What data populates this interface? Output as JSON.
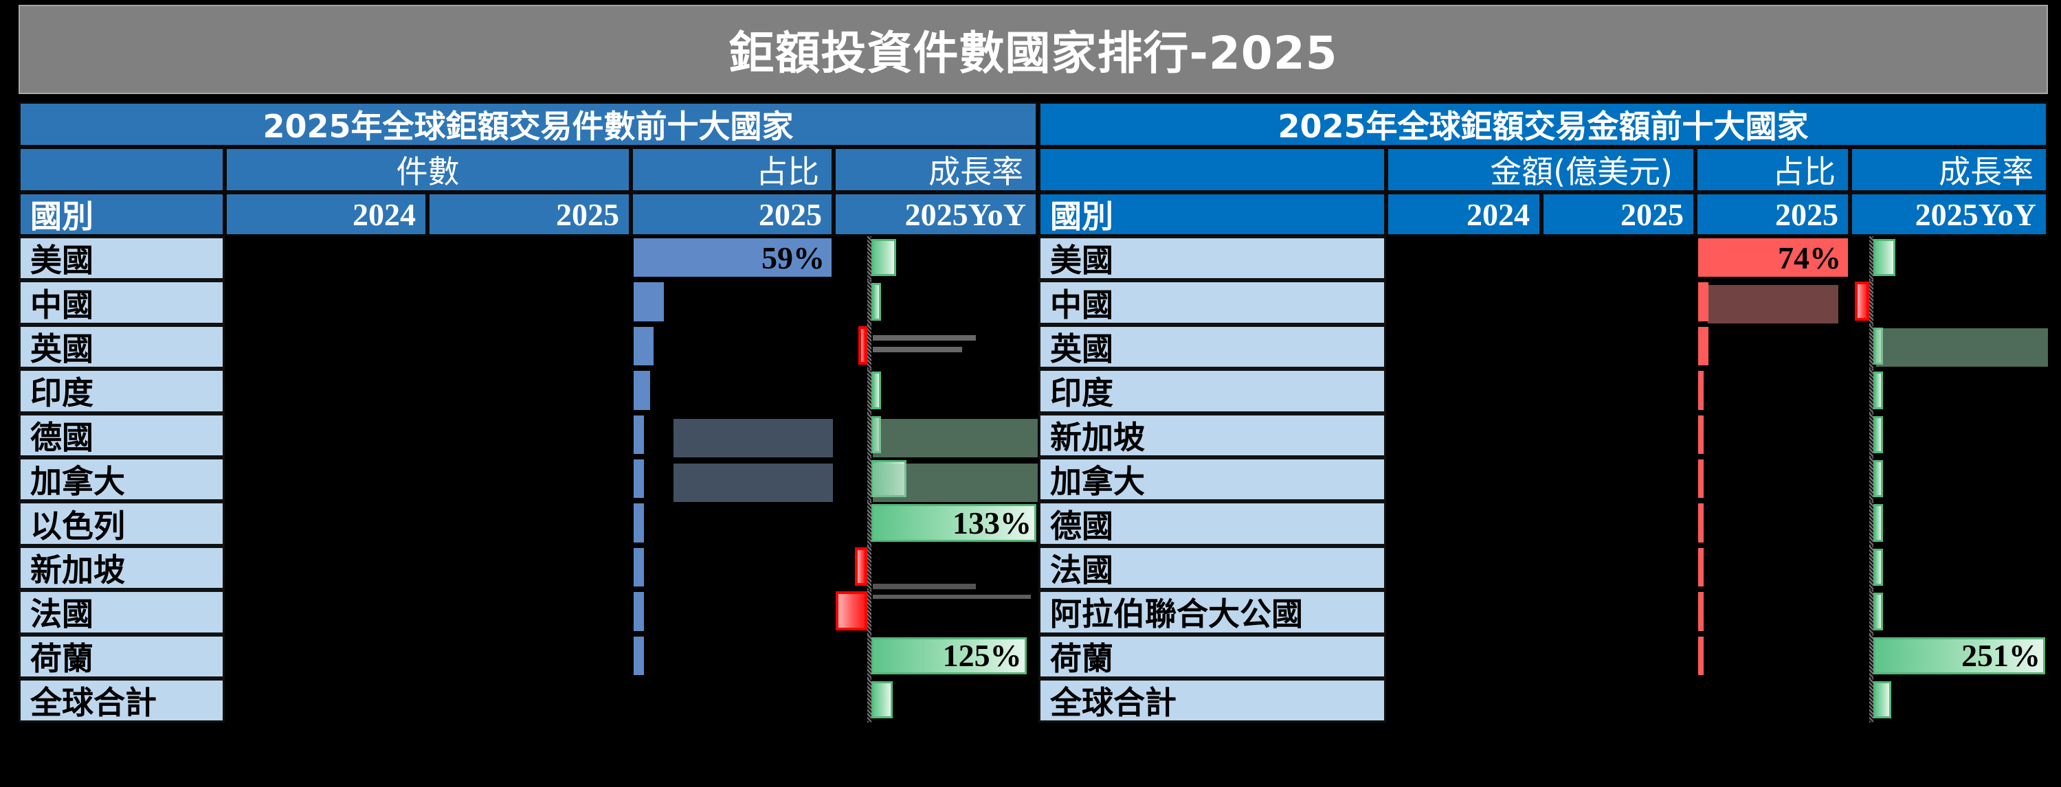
{
  "title": "鉅額投資件數國家排行-2025",
  "chart_data": [
    {
      "type": "table",
      "title": "2025年全球鉅額交易件數前十大國家",
      "column_groups": [
        "",
        "件數",
        "占比",
        "成長率"
      ],
      "columns": [
        "國別",
        "2024",
        "2025",
        "2025",
        "2025YoY"
      ],
      "rows": [
        {
          "country": "美國",
          "count_2024": "",
          "count_2025": "",
          "share_2025": 59,
          "share_label": "59%",
          "yoy": 20,
          "yoy_label": ""
        },
        {
          "country": "中國",
          "count_2024": "",
          "count_2025": "",
          "share_2025": 9,
          "share_label": "",
          "yoy": 6,
          "yoy_label": ""
        },
        {
          "country": "英國",
          "count_2024": "",
          "count_2025": "",
          "share_2025": 6,
          "share_label": "",
          "yoy": -6,
          "yoy_label": ""
        },
        {
          "country": "印度",
          "count_2024": "",
          "count_2025": "",
          "share_2025": 5,
          "share_label": "",
          "yoy": 6,
          "yoy_label": ""
        },
        {
          "country": "德國",
          "count_2024": "",
          "count_2025": "",
          "share_2025": 3,
          "share_label": "",
          "yoy": 3,
          "yoy_label": ""
        },
        {
          "country": "加拿大",
          "count_2024": "",
          "count_2025": "",
          "share_2025": 3,
          "share_label": "",
          "yoy": 28,
          "yoy_label": ""
        },
        {
          "country": "以色列",
          "count_2024": "",
          "count_2025": "",
          "share_2025": 3,
          "share_label": "",
          "yoy": 133,
          "yoy_label": "133%"
        },
        {
          "country": "新加坡",
          "count_2024": "",
          "count_2025": "",
          "share_2025": 3,
          "share_label": "",
          "yoy": -8,
          "yoy_label": ""
        },
        {
          "country": "法國",
          "count_2024": "",
          "count_2025": "",
          "share_2025": 3,
          "share_label": "",
          "yoy": -21,
          "yoy_label": ""
        },
        {
          "country": "荷蘭",
          "count_2024": "",
          "count_2025": "",
          "share_2025": 3,
          "share_label": "",
          "yoy": 125,
          "yoy_label": "125%"
        },
        {
          "country": "全球合計",
          "count_2024": "",
          "count_2025": "",
          "share_2025": null,
          "share_label": "",
          "yoy": 17,
          "yoy_label": ""
        }
      ]
    },
    {
      "type": "table",
      "title": "2025年全球鉅額交易金額前十大國家",
      "column_groups": [
        "",
        "金額(億美元)",
        "占比",
        "成長率"
      ],
      "columns": [
        "國別",
        "2024",
        "2025",
        "2025",
        "2025YoY"
      ],
      "rows": [
        {
          "country": "美國",
          "amount_2024": "",
          "amount_2025": "",
          "share_2025": 74,
          "share_label": "74%",
          "yoy": 32,
          "yoy_label": ""
        },
        {
          "country": "中國",
          "amount_2024": "",
          "amount_2025": "",
          "share_2025": 5,
          "share_label": "",
          "yoy": -7,
          "yoy_label": ""
        },
        {
          "country": "英國",
          "amount_2024": "",
          "amount_2025": "",
          "share_2025": 5,
          "share_label": "",
          "yoy": 4,
          "yoy_label": ""
        },
        {
          "country": "印度",
          "amount_2024": "",
          "amount_2025": "",
          "share_2025": 2,
          "share_label": "",
          "yoy": 4,
          "yoy_label": ""
        },
        {
          "country": "新加坡",
          "amount_2024": "",
          "amount_2025": "",
          "share_2025": 2,
          "share_label": "",
          "yoy": 4,
          "yoy_label": ""
        },
        {
          "country": "加拿大",
          "amount_2024": "",
          "amount_2025": "",
          "share_2025": 2,
          "share_label": "",
          "yoy": 12,
          "yoy_label": ""
        },
        {
          "country": "德國",
          "amount_2024": "",
          "amount_2025": "",
          "share_2025": 2,
          "share_label": "",
          "yoy": 4,
          "yoy_label": ""
        },
        {
          "country": "法國",
          "amount_2024": "",
          "amount_2025": "",
          "share_2025": 2,
          "share_label": "",
          "yoy": 12,
          "yoy_label": ""
        },
        {
          "country": "阿拉伯聯合大公國",
          "amount_2024": "",
          "amount_2025": "",
          "share_2025": 2,
          "share_label": "",
          "yoy": 12,
          "yoy_label": ""
        },
        {
          "country": "荷蘭",
          "amount_2024": "",
          "amount_2025": "",
          "share_2025": 2,
          "share_label": "",
          "yoy": 251,
          "yoy_label": "251%"
        },
        {
          "country": "全球合計",
          "amount_2024": "",
          "amount_2025": "",
          "share_2025": null,
          "share_label": "",
          "yoy": 26,
          "yoy_label": ""
        }
      ]
    }
  ],
  "left": {
    "title": "2025年全球鉅額交易件數前十大國家",
    "group_count": "件數",
    "group_share": "占比",
    "group_growth": "成長率",
    "col_country": "國別",
    "col_2024": "2024",
    "col_2025": "2025",
    "col_share": "2025",
    "col_yoy": "2025YoY",
    "colors": {
      "header": "#2e75b6",
      "country_cell": "#bdd7ee",
      "share_bar": "#5f8ac7",
      "yoy_pos": "#5dc489",
      "yoy_neg": "#ff0000"
    }
  },
  "right": {
    "title": "2025年全球鉅額交易金額前十大國家",
    "group_amount": "金額(億美元)",
    "group_share": "占比",
    "group_growth": "成長率",
    "col_country": "國別",
    "col_2024": "2024",
    "col_2025": "2025",
    "col_share": "2025",
    "col_yoy": "2025YoY",
    "colors": {
      "header": "#0070c0",
      "country_cell": "#bdd7ee",
      "share_bar": "#ff5b5b",
      "yoy_pos": "#5dc489",
      "yoy_neg": "#ff0000"
    }
  }
}
